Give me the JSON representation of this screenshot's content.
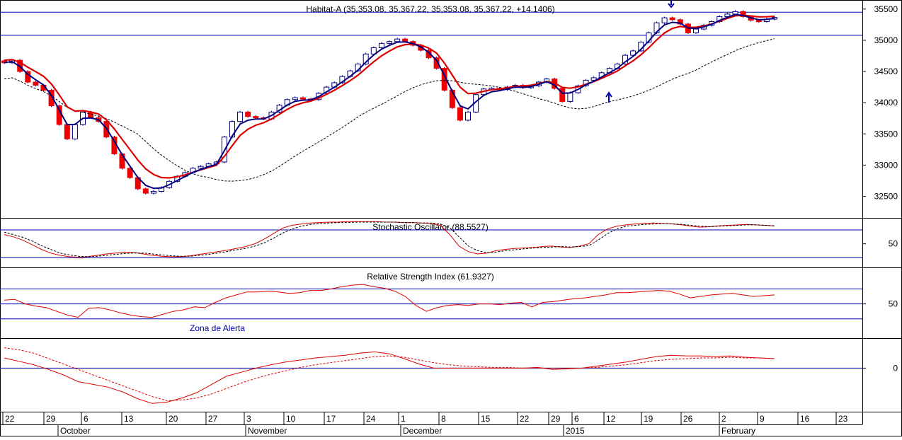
{
  "chart_data": [
    {
      "id": "price",
      "type": "candlestick",
      "title": "Habitat-A (35,353.08, 35,367.22, 35,353.08, 35,367.22, +14.1406)",
      "ylim": [
        32200,
        35600
      ],
      "yticks": [
        32500,
        33000,
        33500,
        34000,
        34500,
        35000,
        35500
      ],
      "hlines": [
        35450,
        35080
      ],
      "closes": [
        34640,
        34680,
        34500,
        34330,
        34280,
        34200,
        33950,
        33650,
        33420,
        33650,
        33850,
        33760,
        33700,
        33450,
        33180,
        32950,
        32800,
        32620,
        32550,
        32580,
        32640,
        32740,
        32820,
        32880,
        32950,
        32980,
        33020,
        33050,
        33450,
        33700,
        33850,
        33780,
        33760,
        33740,
        33850,
        33960,
        34050,
        34080,
        34060,
        34050,
        34150,
        34250,
        34320,
        34420,
        34510,
        34620,
        34780,
        34880,
        34950,
        34980,
        35020,
        34980,
        34920,
        34840,
        34720,
        34550,
        34200,
        33920,
        33720,
        33850,
        34130,
        34220,
        34230,
        34210,
        34250,
        34280,
        34240,
        34270,
        34330,
        34380,
        34230,
        34020,
        34160,
        34270,
        34360,
        34400,
        34480,
        34550,
        34620,
        34760,
        34830,
        34970,
        35120,
        35280,
        35360,
        35330,
        35260,
        35120,
        35180,
        35240,
        35300,
        35380,
        35420,
        35460,
        35380,
        35320,
        35300,
        35340,
        35367
      ]
    },
    {
      "id": "stochastic",
      "type": "line",
      "title": "Stochastic Oscillator (88.5527)",
      "ylim": [
        5,
        100
      ],
      "yticks": [
        50
      ],
      "hlines": [
        80,
        20
      ],
      "series": [
        {
          "name": "%K",
          "values": [
            70,
            65,
            58,
            48,
            38,
            30,
            25,
            22,
            21,
            22,
            25,
            28,
            30,
            32,
            31,
            28,
            25,
            23,
            22,
            22,
            24,
            27,
            30,
            33,
            36,
            40,
            44,
            50,
            60,
            72,
            84,
            90,
            93,
            95,
            96,
            97,
            97,
            98,
            98,
            98,
            98,
            97,
            97,
            96,
            96,
            95,
            94,
            90,
            70,
            45,
            33,
            28,
            30,
            35,
            38,
            40,
            41,
            42,
            44,
            45,
            43,
            42,
            45,
            50,
            70,
            82,
            88,
            91,
            93,
            94,
            95,
            94,
            93,
            91,
            88,
            86,
            87,
            89,
            90,
            91,
            92,
            91,
            90,
            88.55
          ]
        },
        {
          "name": "%D",
          "values": [
            75,
            70,
            64,
            56,
            46,
            38,
            30,
            26,
            23,
            22,
            23,
            25,
            27,
            29,
            30,
            30,
            28,
            26,
            24,
            23,
            23,
            25,
            27,
            30,
            33,
            37,
            40,
            45,
            52,
            62,
            73,
            82,
            88,
            92,
            94,
            95,
            96,
            96,
            97,
            97,
            97,
            97,
            97,
            96,
            96,
            95,
            95,
            93,
            85,
            65,
            45,
            35,
            31,
            32,
            35,
            37,
            39,
            41,
            42,
            43,
            44,
            43,
            44,
            46,
            58,
            72,
            82,
            88,
            90,
            92,
            93,
            94,
            93,
            92,
            90,
            88,
            87,
            88,
            89,
            90,
            91,
            91,
            90,
            89
          ]
        }
      ]
    },
    {
      "id": "rsi",
      "type": "line",
      "title": "Relative Strength Index (61.9327)",
      "annotation": "Zona de Alerta",
      "ylim": [
        8,
        95
      ],
      "yticks": [
        50
      ],
      "hlines": [
        70,
        50,
        30
      ],
      "series": [
        {
          "name": "RSI",
          "values": [
            55,
            56,
            50,
            47,
            45,
            40,
            35,
            32,
            44,
            45,
            42,
            38,
            35,
            33,
            32,
            36,
            40,
            42,
            46,
            45,
            52,
            58,
            62,
            66,
            66,
            67,
            66,
            64,
            65,
            68,
            68,
            70,
            73,
            75,
            76,
            73,
            71,
            67,
            60,
            48,
            40,
            45,
            48,
            49,
            48,
            50,
            50,
            49,
            51,
            52,
            46,
            52,
            53,
            55,
            57,
            58,
            60,
            62,
            65,
            65,
            66,
            67,
            68,
            67,
            63,
            58,
            60,
            62,
            63,
            64,
            62,
            60,
            61,
            62
          ]
        }
      ]
    },
    {
      "id": "macd",
      "type": "line",
      "ylim": [
        -60,
        40
      ],
      "yticks": [
        0
      ],
      "hlines": [
        0
      ],
      "series": [
        {
          "name": "MACD",
          "values": [
            15,
            10,
            5,
            -2,
            -10,
            -20,
            -24,
            -28,
            -35,
            -45,
            -52,
            -50,
            -44,
            -36,
            -24,
            -12,
            -6,
            0,
            5,
            9,
            12,
            15,
            17,
            19,
            22,
            24,
            21,
            14,
            6,
            0,
            0,
            0,
            0,
            0,
            0,
            0,
            1,
            -2,
            -1,
            0,
            3,
            6,
            9,
            13,
            17,
            19,
            18,
            18,
            17,
            18,
            16,
            15,
            14
          ]
        },
        {
          "name": "Signal",
          "values": [
            30,
            27,
            22,
            14,
            6,
            -2,
            -10,
            -18,
            -26,
            -34,
            -42,
            -48,
            -47,
            -44,
            -38,
            -30,
            -22,
            -15,
            -9,
            -4,
            1,
            5,
            8,
            11,
            14,
            17,
            18,
            16,
            12,
            8,
            5,
            3,
            2,
            1,
            1,
            0,
            0,
            0,
            0,
            0,
            1,
            3,
            5,
            8,
            11,
            13,
            14,
            15,
            15,
            16,
            15,
            15,
            14
          ]
        }
      ]
    }
  ],
  "x_axis": {
    "tick_labels": [
      "22",
      "29",
      "6",
      "13",
      "20",
      "27",
      "3",
      "10",
      "17",
      "24",
      "1",
      "8",
      "15",
      "22",
      "29",
      "6",
      "12",
      "19",
      "26",
      "2",
      "9",
      "16",
      "23"
    ],
    "month_labels": [
      "October",
      "November",
      "December",
      "2015",
      "February"
    ]
  },
  "signals": {
    "sell_arrow": "down-arrow",
    "buy_arrow": "up-arrow"
  },
  "colors": {
    "axis_blue": "#0000aa",
    "line_red": "#dd0000",
    "down_fill": "#ee0000",
    "dark_blue": "#000080",
    "black": "#000000"
  }
}
